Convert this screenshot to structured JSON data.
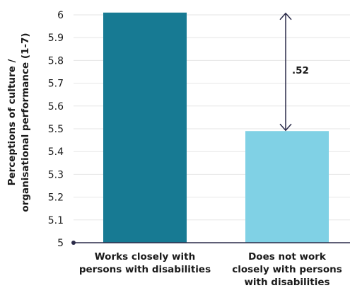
{
  "chart_data": {
    "type": "bar",
    "categories": [
      [
        "Works closely with",
        "persons with disabilities"
      ],
      [
        "Does not work",
        "closely with persons",
        "with disabilities"
      ]
    ],
    "values": [
      6.01,
      5.49
    ],
    "colors": [
      "#177a93",
      "#80d1e5"
    ],
    "ylabel": [
      "Perceptions of culture /",
      "organisational performance (1-7)"
    ],
    "ylim": [
      5,
      6.0
    ],
    "yticks": [
      "5",
      "5.1",
      "5.2",
      "5.3",
      "5.4",
      "5.5",
      "5.6",
      "5.7",
      "5.8",
      "5.9",
      "6"
    ],
    "grid": true,
    "annotation": {
      "label": ".52",
      "from": 6.01,
      "to": 5.49
    }
  }
}
